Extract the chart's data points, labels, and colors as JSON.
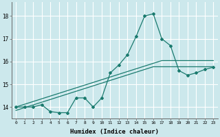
{
  "xlabel": "Humidex (Indice chaleur)",
  "ylabel": "",
  "background_color": "#cce8ec",
  "grid_color": "#ffffff",
  "line_color": "#1a7a6e",
  "x_values": [
    0,
    1,
    2,
    3,
    4,
    5,
    6,
    7,
    8,
    9,
    10,
    11,
    12,
    13,
    14,
    15,
    16,
    17,
    18,
    19,
    20,
    21,
    22,
    23
  ],
  "y_main": [
    14.0,
    14.0,
    14.0,
    14.1,
    13.8,
    13.75,
    13.75,
    14.4,
    14.4,
    14.0,
    14.4,
    15.5,
    15.85,
    16.3,
    17.1,
    18.0,
    18.1,
    17.0,
    16.7,
    15.6,
    15.4,
    15.5,
    15.65,
    15.75
  ],
  "y_linear1": [
    14.0,
    14.12,
    14.24,
    14.36,
    14.48,
    14.6,
    14.72,
    14.84,
    14.96,
    15.08,
    15.2,
    15.32,
    15.44,
    15.56,
    15.68,
    15.8,
    15.92,
    16.04,
    16.04,
    16.04,
    16.04,
    16.04,
    16.04,
    16.04
  ],
  "y_linear2": [
    13.85,
    13.97,
    14.09,
    14.21,
    14.33,
    14.45,
    14.57,
    14.69,
    14.81,
    14.93,
    15.05,
    15.17,
    15.29,
    15.41,
    15.53,
    15.65,
    15.77,
    15.77,
    15.77,
    15.77,
    15.77,
    15.77,
    15.77,
    15.77
  ],
  "ylim": [
    13.5,
    18.6
  ],
  "yticks": [
    14,
    15,
    16,
    17,
    18
  ],
  "xlim": [
    -0.5,
    23.5
  ]
}
